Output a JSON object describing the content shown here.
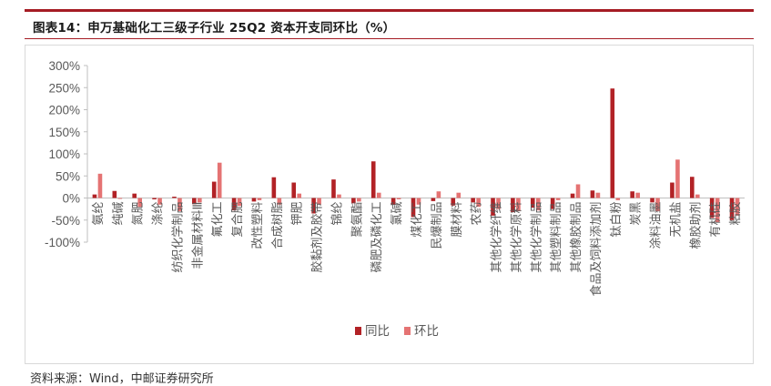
{
  "figure": {
    "title": "图表14：申万基础化工三级子行业 25Q2 资本开支同环比（%）",
    "source": "资料来源：Wind，中邮证券研究所"
  },
  "colors": {
    "series_yoy": "#b22226",
    "series_qoq": "#e57373",
    "axis": "#bfbfbf",
    "text": "#595959",
    "accent": "#a51c24"
  },
  "chart_data": {
    "type": "bar",
    "title": "",
    "xlabel": "",
    "ylabel": "",
    "ylim": [
      -100,
      300
    ],
    "yticks": [
      -100,
      -50,
      0,
      50,
      100,
      150,
      200,
      250,
      300
    ],
    "ytick_labels": [
      "-100%",
      "-50%",
      "0%",
      "50%",
      "100%",
      "150%",
      "200%",
      "250%",
      "300%"
    ],
    "grid": false,
    "legend_position": "bottom-center",
    "categories": [
      "氨纶",
      "纯碱",
      "氮肥",
      "涤纶",
      "纺织化学制品",
      "非金属材料Ⅲ",
      "氟化工",
      "复合肥",
      "改性塑料",
      "合成树脂",
      "钾肥",
      "胶黏剂及胶带",
      "锦纶",
      "聚氨酯",
      "磷肥及磷化工",
      "氯碱",
      "煤化工",
      "民爆制品",
      "膜材料",
      "农药",
      "其他化学纤维",
      "其他化学原料",
      "其他化学制品",
      "其他塑料制品",
      "其他橡胶制品",
      "食品及饲料添加剂",
      "钛白粉",
      "炭黑",
      "涂料油墨",
      "无机盐",
      "橡胶助剂",
      "有机硅",
      "粘胶"
    ],
    "series": [
      {
        "name": "同比",
        "values": [
          8,
          16,
          10,
          -3,
          3,
          -14,
          37,
          -28,
          -8,
          47,
          35,
          -35,
          42,
          -12,
          83,
          -15,
          -43,
          -7,
          -17,
          -10,
          -40,
          -32,
          -22,
          -25,
          10,
          17,
          248,
          15,
          -10,
          35,
          48,
          -45,
          -50
        ]
      },
      {
        "name": "环比",
        "values": [
          55,
          -2,
          -20,
          -15,
          -30,
          -10,
          80,
          -18,
          -5,
          -15,
          10,
          -15,
          8,
          -8,
          12,
          -3,
          -15,
          15,
          12,
          -20,
          -25,
          -30,
          -28,
          -5,
          31,
          12,
          -5,
          12,
          -30,
          87,
          8,
          -55,
          -40
        ]
      }
    ]
  }
}
